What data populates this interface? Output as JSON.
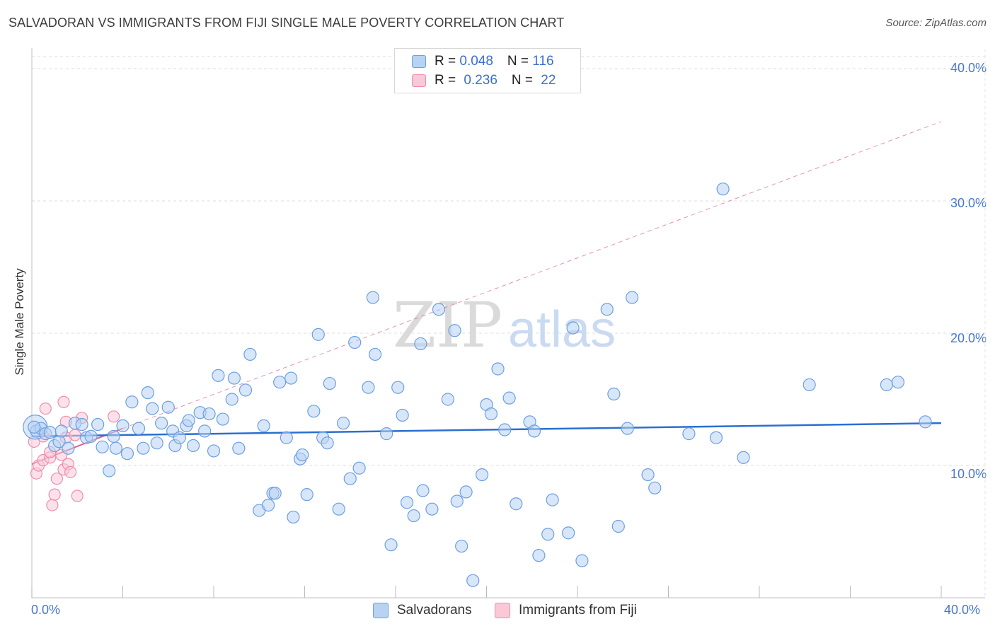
{
  "title": "SALVADORAN VS IMMIGRANTS FROM FIJI SINGLE MALE POVERTY CORRELATION CHART",
  "source": "Source: ZipAtlas.com",
  "watermark": {
    "zip": "ZIP",
    "atlas": "atlas"
  },
  "legend": {
    "rows": [
      {
        "r_label": "R = ",
        "r_value": "0.048",
        "n_label": "N = ",
        "n_value": "116"
      },
      {
        "r_label": "R = ",
        "r_value": "0.236",
        "n_label": "N = ",
        "n_value": "22"
      }
    ]
  },
  "bottom_legend": {
    "series1": "Salvadorans",
    "series2": "Immigrants from Fiji"
  },
  "chart_data": {
    "type": "scatter",
    "title": "SALVADORAN VS IMMIGRANTS FROM FIJI SINGLE MALE POVERTY CORRELATION CHART",
    "xlabel": "",
    "ylabel": "Single Male Poverty",
    "xlim": [
      0,
      40
    ],
    "ylim": [
      0,
      40
    ],
    "x_tick_labels": [
      "0.0%",
      "40.0%"
    ],
    "y_ticks": [
      10,
      20,
      30,
      40
    ],
    "y_tick_labels": [
      "10.0%",
      "20.0%",
      "30.0%",
      "40.0%"
    ],
    "grid": true,
    "colors": {
      "blue": "#6c9fe0",
      "blue_fill": "#b8d2f4",
      "blue_line": "#2a6fd1",
      "pink": "#ee8eac",
      "pink_fill": "#f9c9d8",
      "pink_line": "#e0608a"
    },
    "series": [
      {
        "name": "Salvadorans",
        "R": 0.048,
        "N": 116,
        "trend": {
          "x": [
            0,
            40
          ],
          "y": [
            12.2,
            13.2
          ]
        },
        "points": [
          [
            0.2,
            12.6
          ],
          [
            0.4,
            12.8
          ],
          [
            0.6,
            12.4
          ],
          [
            0.8,
            12.5
          ],
          [
            1.0,
            11.5
          ],
          [
            1.2,
            11.8
          ],
          [
            1.3,
            12.6
          ],
          [
            1.6,
            11.3
          ],
          [
            1.9,
            13.2
          ],
          [
            2.2,
            13.1
          ],
          [
            2.4,
            12.1
          ],
          [
            2.6,
            12.2
          ],
          [
            2.9,
            13.1
          ],
          [
            3.1,
            11.4
          ],
          [
            3.4,
            9.6
          ],
          [
            3.6,
            12.2
          ],
          [
            3.7,
            11.3
          ],
          [
            4.0,
            13.0
          ],
          [
            4.2,
            10.9
          ],
          [
            4.4,
            14.8
          ],
          [
            4.7,
            12.8
          ],
          [
            4.9,
            11.3
          ],
          [
            5.1,
            15.5
          ],
          [
            5.3,
            14.3
          ],
          [
            5.5,
            11.7
          ],
          [
            5.7,
            13.2
          ],
          [
            6.0,
            14.4
          ],
          [
            6.2,
            12.6
          ],
          [
            6.3,
            11.5
          ],
          [
            6.5,
            12.1
          ],
          [
            6.8,
            13.0
          ],
          [
            6.9,
            13.4
          ],
          [
            7.1,
            11.5
          ],
          [
            7.4,
            14.0
          ],
          [
            7.6,
            12.6
          ],
          [
            7.8,
            13.9
          ],
          [
            8.0,
            11.1
          ],
          [
            8.2,
            16.8
          ],
          [
            8.4,
            13.5
          ],
          [
            8.8,
            15.0
          ],
          [
            8.9,
            16.6
          ],
          [
            9.1,
            11.3
          ],
          [
            9.4,
            15.7
          ],
          [
            9.6,
            18.4
          ],
          [
            10.0,
            6.6
          ],
          [
            10.2,
            13.0
          ],
          [
            10.4,
            7.0
          ],
          [
            10.6,
            7.9
          ],
          [
            10.7,
            7.9
          ],
          [
            10.9,
            16.3
          ],
          [
            11.2,
            12.1
          ],
          [
            11.4,
            16.6
          ],
          [
            11.5,
            6.1
          ],
          [
            11.8,
            10.5
          ],
          [
            11.9,
            10.8
          ],
          [
            12.1,
            7.8
          ],
          [
            12.4,
            14.1
          ],
          [
            12.6,
            19.9
          ],
          [
            12.8,
            12.1
          ],
          [
            13.0,
            11.7
          ],
          [
            13.1,
            16.2
          ],
          [
            13.5,
            6.7
          ],
          [
            13.7,
            13.2
          ],
          [
            14.0,
            9.0
          ],
          [
            14.2,
            19.3
          ],
          [
            14.4,
            9.8
          ],
          [
            14.8,
            15.9
          ],
          [
            15.1,
            18.4
          ],
          [
            15.0,
            22.7
          ],
          [
            15.6,
            12.4
          ],
          [
            15.8,
            4.0
          ],
          [
            16.1,
            15.9
          ],
          [
            16.3,
            13.8
          ],
          [
            16.5,
            7.2
          ],
          [
            16.8,
            6.2
          ],
          [
            17.1,
            19.2
          ],
          [
            17.2,
            8.1
          ],
          [
            17.6,
            6.7
          ],
          [
            17.9,
            21.8
          ],
          [
            18.3,
            15.0
          ],
          [
            18.6,
            20.2
          ],
          [
            18.7,
            7.3
          ],
          [
            18.9,
            3.9
          ],
          [
            19.1,
            8.0
          ],
          [
            19.4,
            1.3
          ],
          [
            19.8,
            9.3
          ],
          [
            20.0,
            14.6
          ],
          [
            20.2,
            13.9
          ],
          [
            20.5,
            17.3
          ],
          [
            20.8,
            12.7
          ],
          [
            21.0,
            15.1
          ],
          [
            21.3,
            7.1
          ],
          [
            21.9,
            13.3
          ],
          [
            22.1,
            12.6
          ],
          [
            22.3,
            3.2
          ],
          [
            22.7,
            4.8
          ],
          [
            22.9,
            7.4
          ],
          [
            23.6,
            4.9
          ],
          [
            23.8,
            20.4
          ],
          [
            24.2,
            2.8
          ],
          [
            25.3,
            21.8
          ],
          [
            25.6,
            15.4
          ],
          [
            25.8,
            5.4
          ],
          [
            26.2,
            12.8
          ],
          [
            26.4,
            22.7
          ],
          [
            27.1,
            9.3
          ],
          [
            27.4,
            8.3
          ],
          [
            28.9,
            12.4
          ],
          [
            30.1,
            12.1
          ],
          [
            30.4,
            30.9
          ],
          [
            31.3,
            10.6
          ],
          [
            34.2,
            16.1
          ],
          [
            37.6,
            16.1
          ],
          [
            38.1,
            16.3
          ],
          [
            39.3,
            13.3
          ],
          [
            0.1,
            12.9
          ]
        ]
      },
      {
        "name": "Immigrants from Fiji",
        "R": 0.236,
        "N": 22,
        "trend": {
          "x": [
            0,
            4.0
          ],
          "y": [
            10.1,
            12.8
          ],
          "dashed_extension": {
            "x": [
              4.0,
              40
            ],
            "y": [
              12.8,
              36.0
            ]
          }
        },
        "points": [
          [
            0.1,
            11.8
          ],
          [
            0.2,
            9.4
          ],
          [
            0.3,
            10.0
          ],
          [
            0.5,
            10.4
          ],
          [
            0.5,
            12.2
          ],
          [
            0.6,
            14.3
          ],
          [
            0.8,
            10.6
          ],
          [
            0.8,
            11.0
          ],
          [
            0.9,
            7.0
          ],
          [
            1.0,
            7.8
          ],
          [
            1.1,
            9.0
          ],
          [
            1.3,
            10.8
          ],
          [
            1.4,
            9.7
          ],
          [
            1.4,
            14.8
          ],
          [
            1.5,
            12.1
          ],
          [
            1.5,
            13.3
          ],
          [
            1.6,
            10.1
          ],
          [
            1.7,
            9.5
          ],
          [
            1.9,
            12.3
          ],
          [
            2.0,
            7.7
          ],
          [
            2.2,
            13.6
          ],
          [
            3.6,
            13.7
          ]
        ]
      }
    ]
  }
}
